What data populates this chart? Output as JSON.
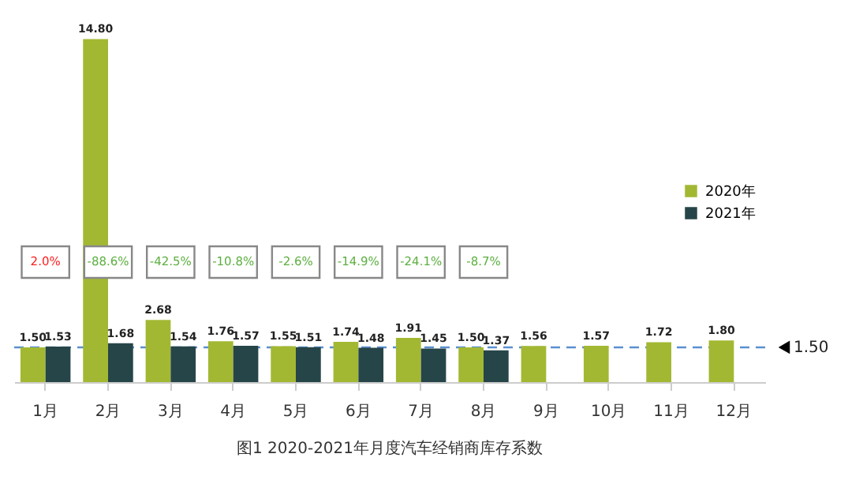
{
  "chart_data": {
    "type": "bar",
    "title": "图1  2020-2021年月度汽车经销商库存系数",
    "categories": [
      "1月",
      "2月",
      "3月",
      "4月",
      "5月",
      "6月",
      "7月",
      "8月",
      "9月",
      "10月",
      "11月",
      "12月"
    ],
    "series": [
      {
        "name": "2020年",
        "color": "#a3b832",
        "values": [
          1.5,
          14.8,
          2.68,
          1.76,
          1.55,
          1.74,
          1.91,
          1.5,
          1.56,
          1.57,
          1.72,
          1.8
        ],
        "value_labels": [
          "1.50",
          "14.80",
          "2.68",
          "1.76",
          "1.55",
          "1.74",
          "1.91",
          "1.50",
          "1.56",
          "1.57",
          "1.72",
          "1.80"
        ]
      },
      {
        "name": "2021年",
        "color": "#264548",
        "values": [
          1.53,
          1.68,
          1.54,
          1.57,
          1.51,
          1.48,
          1.45,
          1.37,
          null,
          null,
          null,
          null
        ],
        "value_labels": [
          "1.53",
          "1.68",
          "1.54",
          "1.57",
          "1.51",
          "1.48",
          "1.45",
          "1.37",
          null,
          null,
          null,
          null
        ]
      }
    ],
    "legend": "right",
    "ref_lines": [
      {
        "axis": "y",
        "value": 1.5,
        "label": "1.50",
        "color": "#5b8fd0",
        "line_style": "dashed"
      }
    ],
    "annotations": [
      {
        "text": "2.0%",
        "x": "1月"
      },
      {
        "text": "-88.6%",
        "x": "2月"
      },
      {
        "text": "-42.5%",
        "x": "3月"
      },
      {
        "text": "-10.8%",
        "x": "4月"
      },
      {
        "text": "-2.6%",
        "x": "5月"
      },
      {
        "text": "-14.9%",
        "x": "6月"
      },
      {
        "text": "-24.1%",
        "x": "7月"
      },
      {
        "text": "-8.7%",
        "x": "8月"
      }
    ]
  }
}
